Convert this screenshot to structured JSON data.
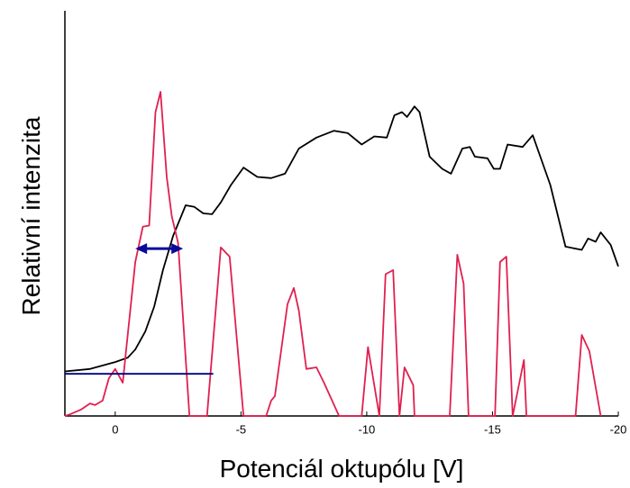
{
  "chart_data": {
    "type": "line",
    "x_label": "Potenciál oktupólu [V]",
    "y_label": "Relativní intenzita",
    "xlim": [
      2,
      -20
    ],
    "xticks": [
      0,
      -5,
      -10,
      -15,
      -20
    ],
    "ylim": [
      0,
      100
    ],
    "series": [
      {
        "color": "#000000",
        "x": [
          2,
          1,
          0,
          -0.5,
          -0.8,
          -1.2,
          -1.55,
          -1.9,
          -2.3,
          -2.8,
          -3.15,
          -3.5,
          -3.85,
          -4.2,
          -4.6,
          -5.1,
          -5.65,
          -6.2,
          -6.75,
          -7.3,
          -8,
          -8.7,
          -9.25,
          -9.8,
          -10.3,
          -10.8,
          -11.1,
          -11.4,
          -11.6,
          -11.9,
          -12.1,
          -12.5,
          -13,
          -13.35,
          -13.8,
          -14.1,
          -14.3,
          -14.8,
          -15.05,
          -15.3,
          -15.6,
          -16.2,
          -16.6,
          -16.9,
          -17.3,
          -17.9,
          -18.55,
          -18.8,
          -19.1,
          -19.3,
          -19.7,
          -20
        ],
        "values": [
          11,
          11.6,
          13.3,
          14.4,
          16.4,
          20.9,
          27,
          36,
          44.4,
          52,
          51.6,
          50,
          49.8,
          52.7,
          57,
          61.3,
          59,
          58.7,
          59.8,
          66,
          68.7,
          70.4,
          69.8,
          67,
          69,
          68.7,
          74.2,
          75,
          73.8,
          76.4,
          75,
          64,
          61,
          59.8,
          66,
          66.4,
          64,
          63.6,
          61,
          61,
          67,
          66.4,
          69.3,
          64,
          57,
          41.8,
          41,
          43.8,
          43,
          45.3,
          42.2,
          36.9
        ]
      },
      {
        "color": "#e0204f",
        "x": [
          2,
          1.8,
          1.35,
          1,
          0.8,
          0.5,
          0.25,
          0,
          -0.3,
          -0.8,
          -1.1,
          -1.35,
          -1.6,
          -1.8,
          -2.05,
          -2.25,
          -2.5,
          -2.95,
          -3.65,
          -4.2,
          -4.55,
          -5.1,
          -6,
          -6.2,
          -6.35,
          -6.85,
          -7.1,
          -7.3,
          -7.6,
          -8,
          -8.3,
          -8.9,
          -9.8,
          -10.05,
          -10.5,
          -10.75,
          -11.05,
          -11.3,
          -11.5,
          -11.85,
          -11.9,
          -13.3,
          -13.6,
          -13.85,
          -14.05,
          -15.1,
          -15.3,
          -15.55,
          -15.8,
          -16.25,
          -16.35,
          -18.3,
          -18.55,
          -18.85,
          -19.3
        ],
        "values": [
          0,
          0.4,
          1.6,
          3.1,
          2.7,
          3.8,
          9.3,
          11.6,
          8.2,
          38,
          46.7,
          47,
          75,
          80,
          59,
          49.3,
          42.7,
          0,
          0,
          41.6,
          39.3,
          0,
          0,
          3.8,
          4.9,
          27.6,
          31.6,
          26,
          11.6,
          12,
          8.2,
          0,
          0,
          17,
          0,
          35,
          36,
          0,
          12,
          7.6,
          0,
          0,
          39.8,
          32.7,
          0,
          0,
          38,
          39.3,
          0,
          13.8,
          0,
          0,
          20,
          16,
          0
        ]
      }
    ],
    "reference_line": {
      "y": 10.4,
      "x": [
        2,
        -3.9
      ],
      "color": "#000080"
    },
    "arrow": {
      "y": 41.3,
      "x": [
        -0.8,
        -2.7
      ],
      "color": "#0a0a9a"
    }
  }
}
